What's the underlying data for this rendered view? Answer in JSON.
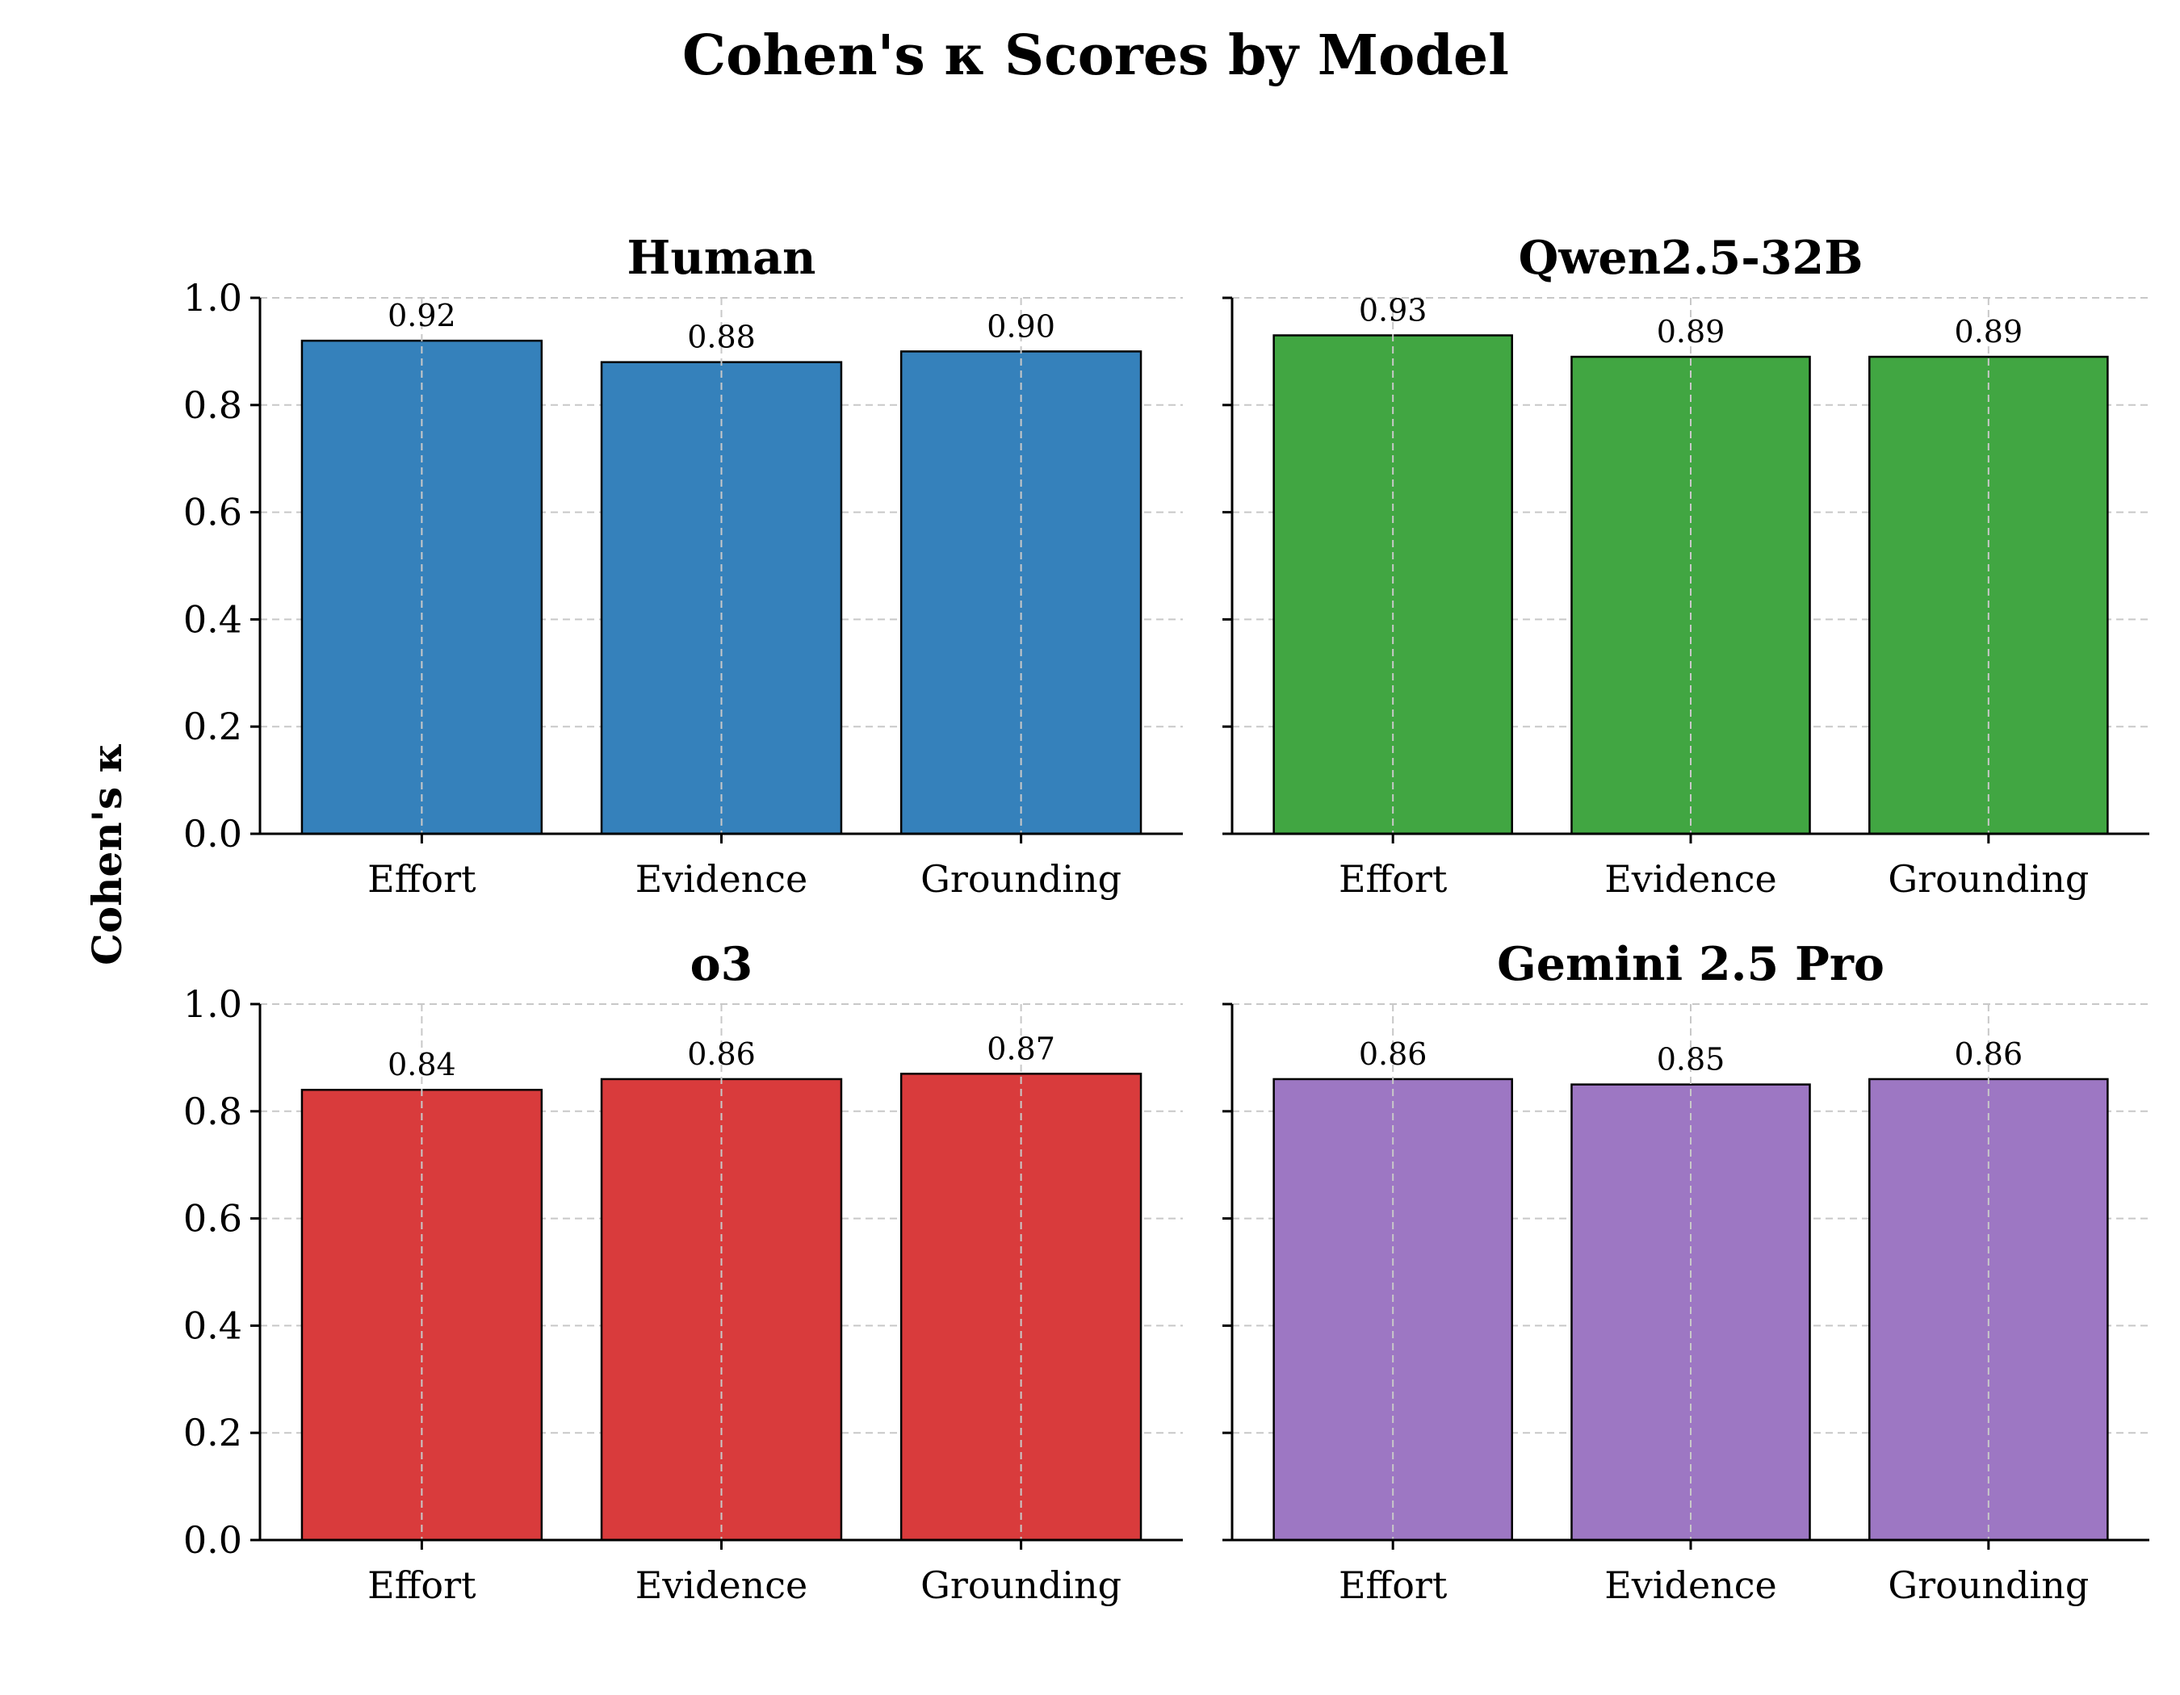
{
  "chart_data": {
    "type": "bar",
    "title": "Cohen's κ Scores by Model",
    "ylabel": "Cohen's κ",
    "ylim": [
      0,
      1.0
    ],
    "yticks": [
      "0.0",
      "0.2",
      "0.4",
      "0.6",
      "0.8",
      "1.0"
    ],
    "grid": true,
    "categories": [
      "Effort",
      "Evidence",
      "Grounding"
    ],
    "panels": [
      {
        "title": "Human",
        "color": "#3581bb",
        "values": [
          0.92,
          0.88,
          0.9
        ],
        "labels": [
          "0.92",
          "0.88",
          "0.90"
        ]
      },
      {
        "title": "Qwen2.5-32B",
        "color": "#41a642",
        "values": [
          0.93,
          0.89,
          0.89
        ],
        "labels": [
          "0.93",
          "0.89",
          "0.89"
        ]
      },
      {
        "title": "o3",
        "color": "#d93b3c",
        "values": [
          0.84,
          0.86,
          0.87
        ],
        "labels": [
          "0.84",
          "0.86",
          "0.87"
        ]
      },
      {
        "title": "Gemini 2.5 Pro",
        "color": "#9d77c3",
        "values": [
          0.86,
          0.85,
          0.86
        ],
        "labels": [
          "0.86",
          "0.85",
          "0.86"
        ]
      }
    ]
  }
}
